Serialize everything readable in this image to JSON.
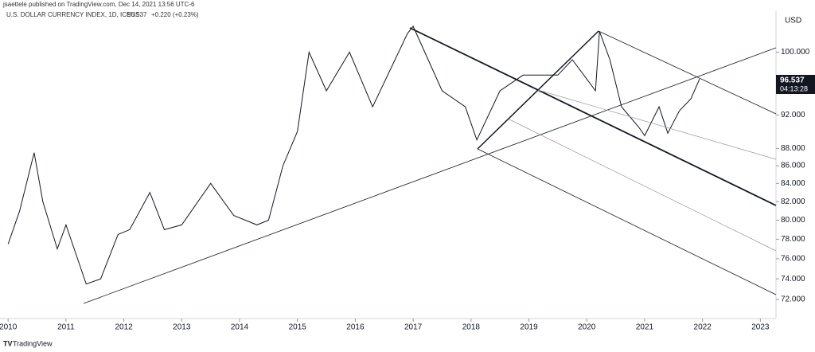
{
  "header": {
    "published": "jsaettele published on TradingView.com, Dec 14, 2021 13:56 UTC-6",
    "symbol": "U.S. DOLLAR CURRENCY INDEX, 1D, ICEUS",
    "last": "96.537",
    "change": "+0.220 (+0.23%)"
  },
  "price_tag": {
    "price": "96.537",
    "countdown": "04:13:28"
  },
  "currency": "USD",
  "brand": "TradingView",
  "chart_data": {
    "type": "line",
    "log_scale": true,
    "color": "#131722",
    "x": [
      2010.0,
      2010.2,
      2010.45,
      2010.6,
      2010.85,
      2011.0,
      2011.35,
      2011.6,
      2011.9,
      2012.1,
      2012.45,
      2012.7,
      2013.0,
      2013.5,
      2013.9,
      2014.3,
      2014.5,
      2014.75,
      2015.0,
      2015.2,
      2015.5,
      2015.9,
      2016.3,
      2016.9,
      2017.0,
      2017.5,
      2017.9,
      2018.1,
      2018.5,
      2018.9,
      2019.5,
      2019.75,
      2020.0,
      2020.15,
      2020.22,
      2020.4,
      2020.6,
      2020.9,
      2021.0,
      2021.25,
      2021.4,
      2021.6,
      2021.8,
      2021.95
    ],
    "values": [
      77.5,
      81,
      87.5,
      82,
      77,
      79.5,
      73.5,
      74,
      78.5,
      79,
      83,
      79,
      79.5,
      84,
      80.5,
      79.5,
      80,
      86,
      90,
      100,
      95,
      100,
      93,
      102.5,
      103.5,
      95,
      93,
      89,
      95,
      97,
      97,
      99,
      96.5,
      95,
      102.8,
      99,
      93,
      90.5,
      89.5,
      93,
      89.8,
      92.5,
      94,
      96.5
    ],
    "xlim": [
      2009.86,
      2023.27
    ],
    "xticks": [
      2010,
      2011,
      2012,
      2013,
      2014,
      2015,
      2016,
      2017,
      2018,
      2019,
      2020,
      2021,
      2022,
      2023
    ],
    "ylim": [
      70.2,
      105.6
    ],
    "yticks": [
      {
        "value": 72,
        "label": "72.000"
      },
      {
        "value": 74,
        "label": "74.000"
      },
      {
        "value": 76,
        "label": "76.000"
      },
      {
        "value": 78,
        "label": "78.000"
      },
      {
        "value": 80,
        "label": "80.000"
      },
      {
        "value": 82,
        "label": "82.000"
      },
      {
        "value": 84,
        "label": "84.000"
      },
      {
        "value": 86,
        "label": "86.000"
      },
      {
        "value": 88,
        "label": "88.000"
      },
      {
        "value": 92,
        "label": "92.000"
      },
      {
        "value": 100,
        "label": "100.000"
      }
    ]
  }
}
